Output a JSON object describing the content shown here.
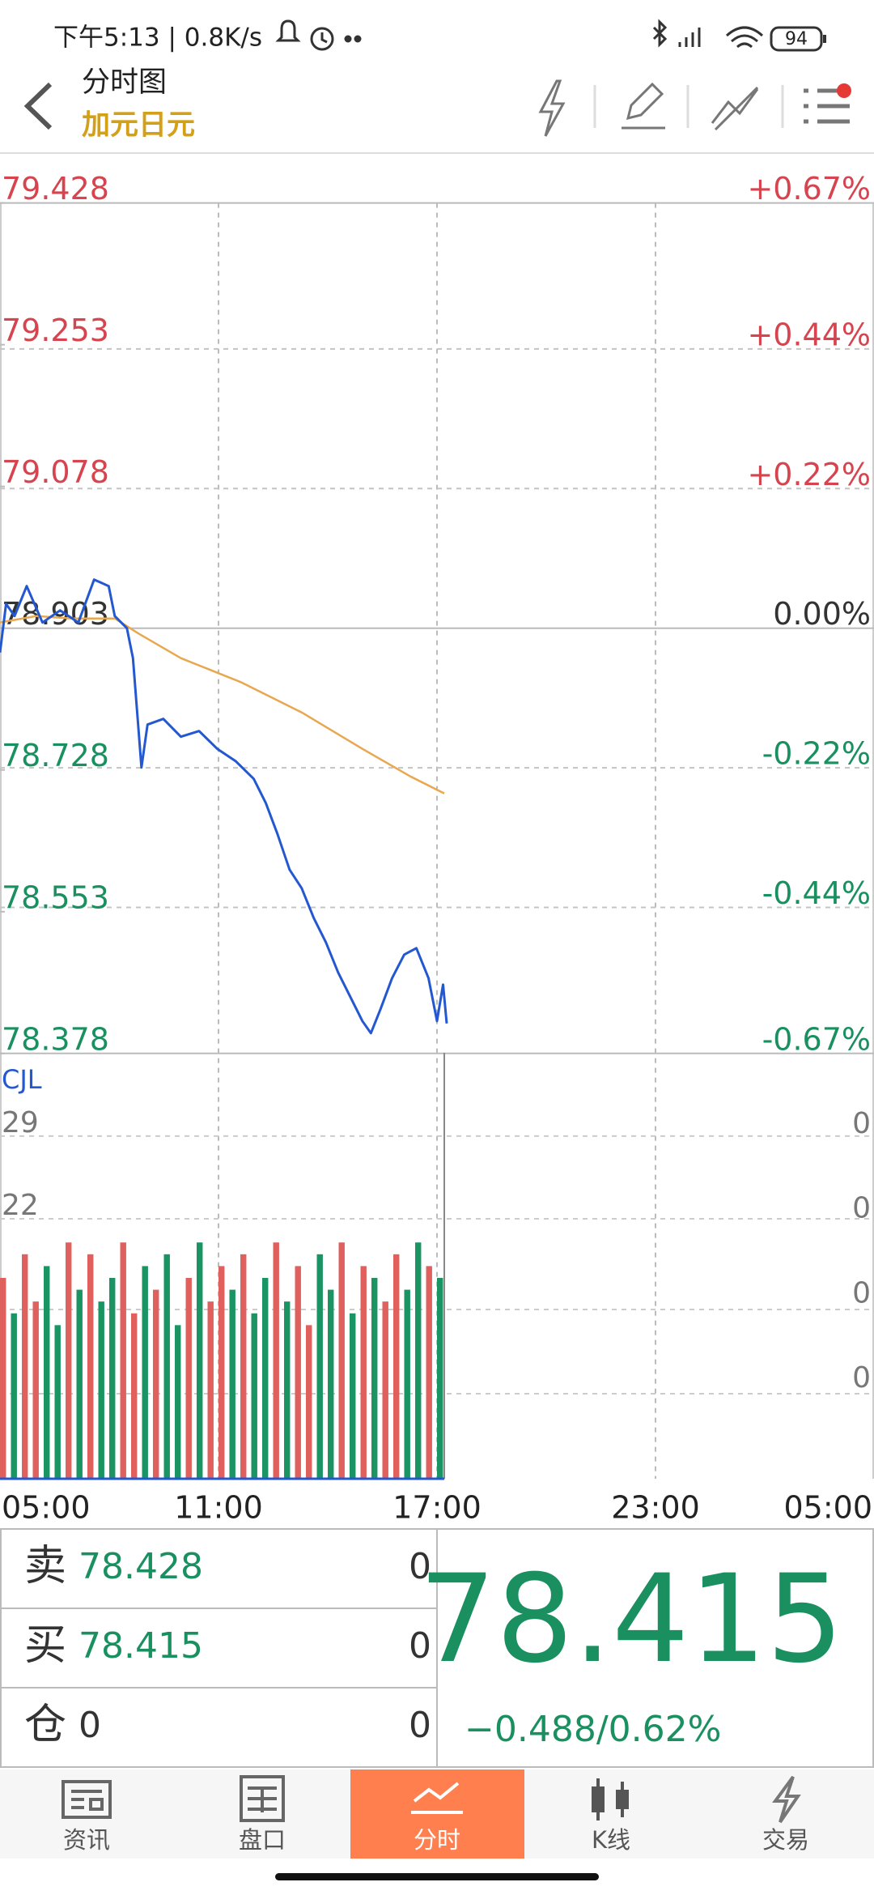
{
  "status_bar": {
    "time": "下午5:13 | 0.8K/s",
    "battery": "94"
  },
  "header": {
    "title": "分时图",
    "subtitle": "加元日元"
  },
  "chart_data": [
    {
      "type": "line",
      "xlim": [
        0,
        1440
      ],
      "xticks": [
        {
          "value": 0,
          "label": "05:00"
        },
        {
          "value": 360,
          "label": "11:00"
        },
        {
          "value": 720,
          "label": "17:00"
        },
        {
          "value": 1080,
          "label": "23:00"
        },
        {
          "value": 1440,
          "label": "05:00"
        }
      ],
      "ylim": [
        78.378,
        79.428
      ],
      "yticks": [
        79.428,
        79.253,
        79.078,
        78.903,
        78.728,
        78.553,
        78.378
      ],
      "y2lim": [
        -0.67,
        0.67
      ],
      "y2ticks": [
        {
          "value": 0.67,
          "label": "+0.67%"
        },
        {
          "value": 0.44,
          "label": "+0.44%"
        },
        {
          "value": 0.22,
          "label": "+0.22%"
        },
        {
          "value": 0,
          "label": "0.00%"
        },
        {
          "value": -0.22,
          "label": "-0.22%"
        },
        {
          "value": -0.44,
          "label": "-0.44%"
        },
        {
          "value": -0.67,
          "label": "-0.67%"
        }
      ],
      "grid": true,
      "series": [
        {
          "color": "#2458d0",
          "x": [
            0,
            10,
            24,
            44,
            70,
            99,
            129,
            155,
            179,
            189,
            209,
            219,
            233,
            243,
            269,
            298,
            328,
            358,
            388,
            418,
            438,
            457,
            477,
            497,
            517,
            537,
            557,
            577,
            597,
            611,
            627,
            646,
            666,
            686,
            706,
            720,
            730,
            736
          ],
          "values": [
            78.873,
            78.933,
            78.918,
            78.955,
            78.91,
            78.925,
            78.91,
            78.963,
            78.955,
            78.918,
            78.903,
            78.866,
            78.731,
            78.784,
            78.791,
            78.769,
            78.776,
            78.754,
            78.739,
            78.717,
            78.687,
            78.649,
            78.605,
            78.582,
            78.545,
            78.515,
            78.478,
            78.448,
            78.418,
            78.403,
            78.433,
            78.471,
            78.5,
            78.508,
            78.471,
            78.418,
            78.463,
            78.415
          ]
        },
        {
          "color": "#e9a74f",
          "x": [
            0,
            60,
            119,
            189,
            229,
            298,
            398,
            497,
            597,
            676,
            732
          ],
          "values": [
            78.91,
            78.918,
            78.915,
            78.915,
            78.896,
            78.866,
            78.836,
            78.799,
            78.754,
            78.72,
            78.699
          ]
        }
      ]
    },
    {
      "type": "bar",
      "title": "CJL",
      "xlim": [
        0,
        1440
      ],
      "ylim": [
        0,
        36
      ],
      "yticks": [
        29,
        22
      ],
      "right_labels": [
        "0",
        "0",
        "0",
        "0"
      ],
      "x": [
        0,
        18,
        36,
        54,
        72,
        90,
        108,
        126,
        144,
        162,
        180,
        198,
        216,
        234,
        252,
        270,
        288,
        306,
        324,
        342,
        360,
        378,
        396,
        414,
        432,
        450,
        468,
        486,
        504,
        522,
        540,
        558,
        576,
        594,
        612,
        630,
        648,
        666,
        684,
        702,
        720
      ],
      "values": [
        17,
        14,
        19,
        15,
        18,
        13,
        20,
        16,
        19,
        15,
        17,
        20,
        14,
        18,
        16,
        19,
        13,
        17,
        20,
        15,
        18,
        16,
        19,
        14,
        17,
        20,
        15,
        18,
        13,
        19,
        16,
        20,
        14,
        18,
        17,
        15,
        19,
        16,
        20,
        18,
        17
      ],
      "colors": [
        "#e0605e",
        "#1a9462",
        "#e0605e",
        "#e0605e",
        "#1a9462",
        "#1a9462",
        "#e0605e",
        "#1a9462",
        "#e0605e",
        "#1a9462",
        "#1a9462",
        "#e0605e",
        "#e0605e",
        "#1a9462",
        "#e0605e",
        "#1a9462",
        "#1a9462",
        "#e0605e",
        "#1a9462",
        "#e0605e",
        "#e0605e",
        "#1a9462",
        "#e0605e",
        "#1a9462",
        "#1a9462",
        "#e0605e",
        "#1a9462",
        "#e0605e",
        "#e0605e",
        "#1a9462",
        "#1a9462",
        "#e0605e",
        "#1a9462",
        "#e0605e",
        "#1a9462",
        "#e0605e",
        "#e0605e",
        "#1a9462",
        "#1a9462",
        "#e0605e",
        "#1a9462"
      ]
    }
  ],
  "quote": {
    "rows": [
      {
        "label": "卖",
        "price": 78.428,
        "qty": 0
      },
      {
        "label": "买",
        "price": 78.415,
        "qty": 0
      },
      {
        "label": "仓",
        "price": 0,
        "qty": 0
      }
    ],
    "last": 78.415,
    "change": "−0.488/0.62%"
  },
  "tabs": [
    "资讯",
    "盘口",
    "分时",
    "K线",
    "交易"
  ]
}
